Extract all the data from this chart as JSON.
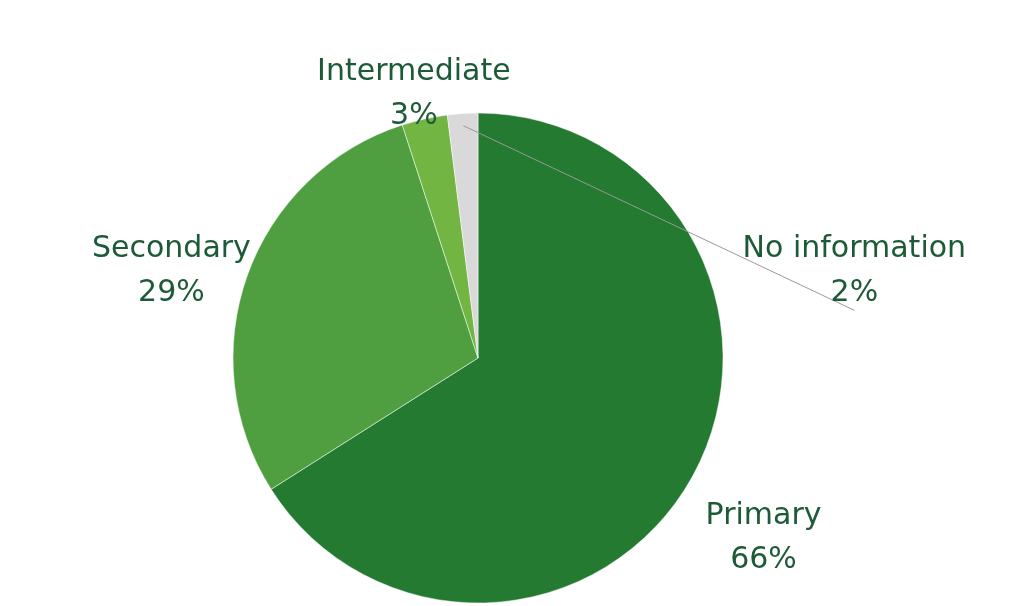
{
  "chart_data": {
    "type": "pie",
    "categories": [
      "Primary",
      "Secondary",
      "Intermediate",
      "No information"
    ],
    "values": [
      66,
      29,
      3,
      2
    ],
    "colors": [
      "#237a30",
      "#4f9e40",
      "#72b542",
      "#d9d9d9"
    ],
    "value_labels": [
      "66%",
      "29%",
      "3%",
      "2%"
    ]
  }
}
